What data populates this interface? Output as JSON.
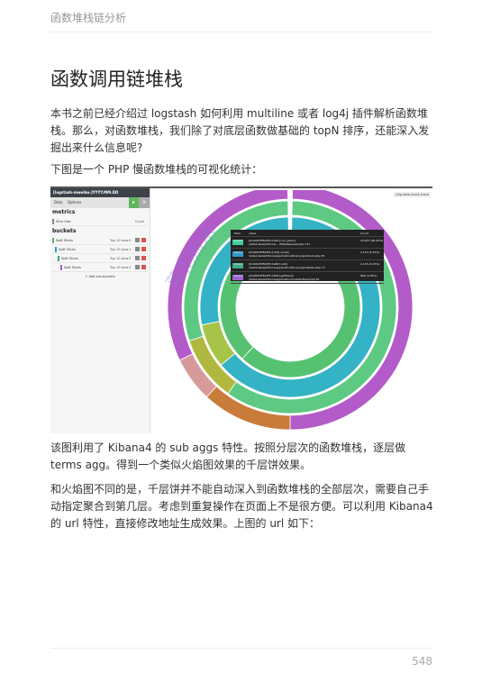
{
  "header": {
    "book_title": "函数堆栈链分析"
  },
  "page": {
    "heading": "函数调用链堆栈",
    "paragraph1": "本书之前已经介绍过 logstash 如何利用 multiline 或者 log4j 插件解析函数堆栈。那么，对函数堆栈，我们除了对底层函数做基础的 topN 排序，还能深入发掘出来什么信息呢?",
    "paragraph2": "下图是一个 PHP 慢函数堆栈的可视化统计：",
    "paragraph3": "该图利用了 Kibana4 的 sub aggs 特性。按照分层次的函数堆栈，逐层做 terms agg。得到一个类似火焰图效果的千层饼效果。",
    "paragraph4": "和火焰图不同的是，千层饼并不能自动深入到函数堆栈的全部层次，需要自己手动指定聚合到第几层。考虑到重复操作在页面上不是很方便。可以利用 Kibana4 的 url 特性，直接修改地址生成效果。上图的 url 如下：",
    "page_number": "548"
  },
  "figure": {
    "index_pattern": "[logstash-mweibo-]YYYY.MM.DD",
    "tabs": [
      "Data",
      "Options"
    ],
    "apply_icon": "play-icon",
    "close_icon": "close-icon",
    "metrics_title": "metrics",
    "metric_row": {
      "label": "Slice Size",
      "value": "Count"
    },
    "buckets_title": "buckets",
    "bucket_rows": [
      {
        "label": "Split Slices",
        "value": "Top 10 slow.0",
        "color": "#5cb85c"
      },
      {
        "label": "Split Slices",
        "value": "Top 10 slow.1",
        "color": "#39c"
      },
      {
        "label": "Split Slices",
        "value": "Top 10 slow.2",
        "color": "#3a7"
      },
      {
        "label": "Split Slices",
        "value": "Top 10 slow.3",
        "color": "#96c"
      }
    ],
    "add_sub_buckets": "+ Add sub-buckets",
    "view_label": "php-slow-stack-trace",
    "tooltip": {
      "headers": [
        "field",
        "value",
        "Count"
      ],
      "rows": [
        {
          "field": "slow.0",
          "value": "[0x00007f8d4f3c1e20] curl_exec() /data1/www/htdocs/..../Http/Request.php:131",
          "count": "23,037 (65.93%)",
          "color": "#4c9"
        },
        {
          "field": "slow.1",
          "value": "[0x00007f8d4f3c1c50] send() /data1/www/htdocs/application/library/Api/Client.php:78",
          "count": "1,113 (6.15%)",
          "color": "#39c"
        },
        {
          "field": "slow.2",
          "value": "[0x00007f8d4f3c1a80] call() /data1/www/htdocs/application/library/Api/Weibo.php:77",
          "count": "1,115 (6.15%)",
          "color": "#4a8"
        },
        {
          "field": "slow.3",
          "value": "[0x00007f8d4f3c18b0] getFeed() /data1/www/htdocs/application/models/Feed.php:36",
          "count": "896 (4.95%)",
          "color": "#96c"
        }
      ]
    },
    "watermark": "落花流水",
    "chart_data": {
      "type": "pie",
      "style": "multi-level donut (sunburst)",
      "levels": [
        {
          "name": "slow.0",
          "slices": [
            {
              "share": 0.62,
              "color": "#56c271"
            },
            {
              "share": 0.38,
              "color": "#56c271"
            }
          ]
        },
        {
          "name": "slow.1",
          "slices": [
            {
              "share": 0.64,
              "color": "#33b3c5"
            },
            {
              "share": 0.08,
              "color": "#a6c447"
            },
            {
              "share": 0.28,
              "color": "#33b3c5"
            }
          ]
        },
        {
          "name": "slow.2",
          "slices": [
            {
              "share": 0.6,
              "color": "#5dc983"
            },
            {
              "share": 0.1,
              "color": "#b0b840"
            },
            {
              "share": 0.3,
              "color": "#5dc983"
            }
          ]
        },
        {
          "name": "slow.3",
          "slices": [
            {
              "share": 0.5,
              "color": "#b35bc8"
            },
            {
              "share": 0.12,
              "color": "#c97b3a"
            },
            {
              "share": 0.06,
              "color": "#d79a9a"
            },
            {
              "share": 0.32,
              "color": "#b35bc8"
            }
          ]
        }
      ]
    }
  }
}
